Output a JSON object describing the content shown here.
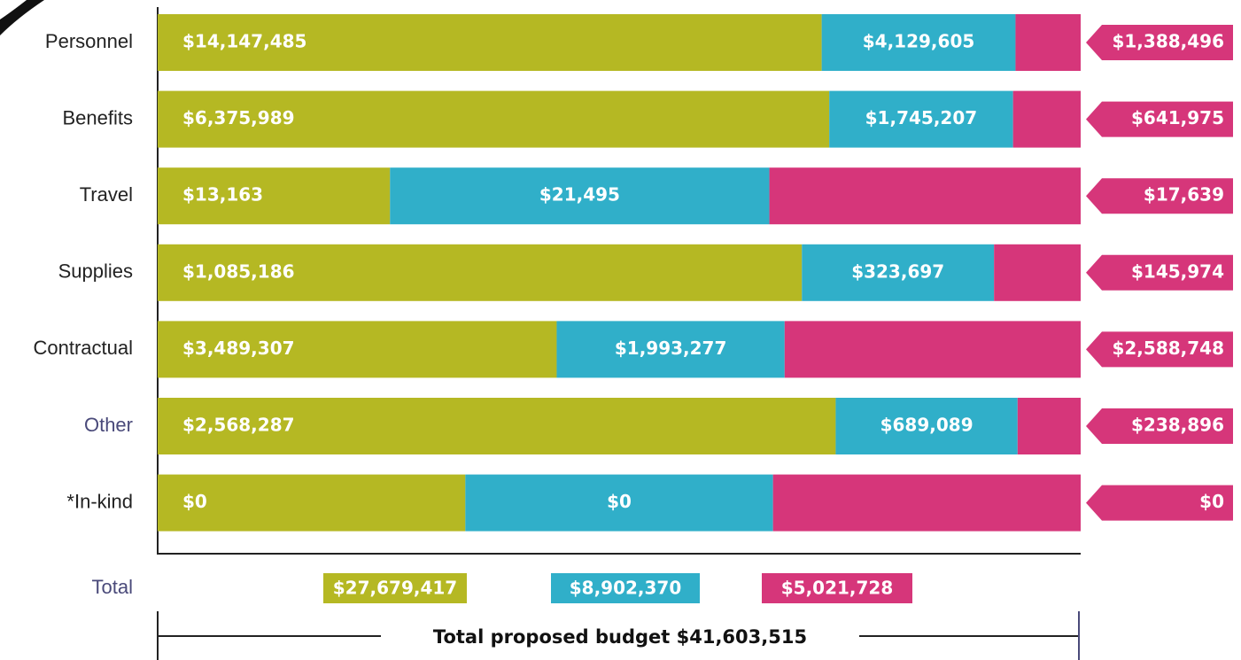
{
  "chart_data": {
    "type": "stacked_bar_100",
    "orientation": "horizontal",
    "categories": [
      "Personnel",
      "Benefits",
      "Travel",
      "Supplies",
      "Contractual",
      "Other",
      "*In-kind"
    ],
    "series": [
      {
        "color": "#b5b823",
        "values": [
          14147485,
          6375989,
          13163,
          1085186,
          3489307,
          2568287,
          0
        ],
        "value_labels": [
          "$14,147,485",
          "$6,375,989",
          "$13,163",
          "$1,085,186",
          "$3,489,307",
          "$2,568,287",
          "$0"
        ]
      },
      {
        "color": "#30afc9",
        "values": [
          4129605,
          1745207,
          21495,
          323697,
          1993277,
          689089,
          0
        ],
        "value_labels": [
          "$4,129,605",
          "$1,745,207",
          "$21,495",
          "$323,697",
          "$1,993,277",
          "$689,089",
          "$0"
        ]
      },
      {
        "color": "#d6367a",
        "values": [
          1388496,
          641975,
          17639,
          145974,
          2588748,
          238896,
          0
        ],
        "value_labels": [
          "$1,388,496",
          "$641,975",
          "$17,639",
          "$145,974",
          "$2,588,748",
          "$238,896",
          "$0"
        ]
      }
    ],
    "totals": {
      "label": "Total",
      "value_labels": [
        "$27,679,417",
        "$8,902,370",
        "$5,021,728"
      ]
    },
    "grand_total": {
      "label": "Total proposed budget",
      "value_label": "$41,603,515"
    }
  }
}
